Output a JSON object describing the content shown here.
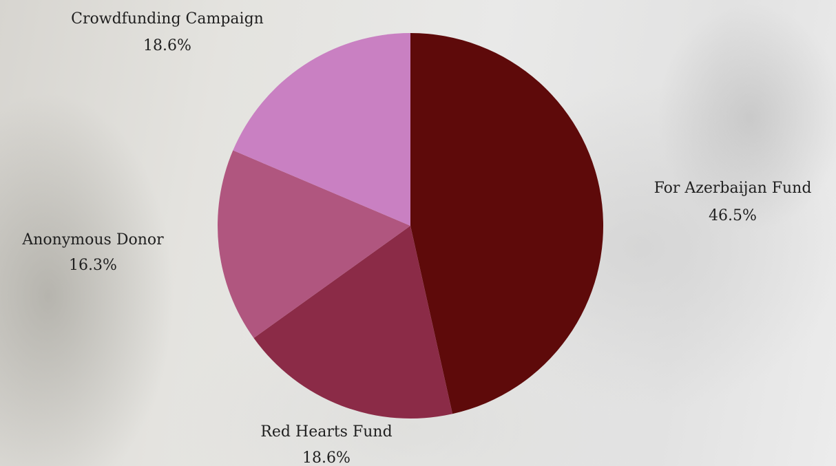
{
  "chart_data": {
    "type": "pie",
    "title": "",
    "slices": [
      {
        "label": "For Azerbaijan Fund",
        "value": 46.5,
        "display": "46.5%",
        "color": "#5e0a0a"
      },
      {
        "label": "Red Hearts Fund",
        "value": 18.6,
        "display": "18.6%",
        "color": "#8b2b47"
      },
      {
        "label": "Anonymous Donor",
        "value": 16.3,
        "display": "16.3%",
        "color": "#b0567f"
      },
      {
        "label": "Crowdfunding Campaign",
        "value": 18.6,
        "display": "18.6%",
        "color": "#c980c2"
      }
    ],
    "start_angle_deg": 0,
    "direction": "clockwise",
    "legend": "none"
  }
}
